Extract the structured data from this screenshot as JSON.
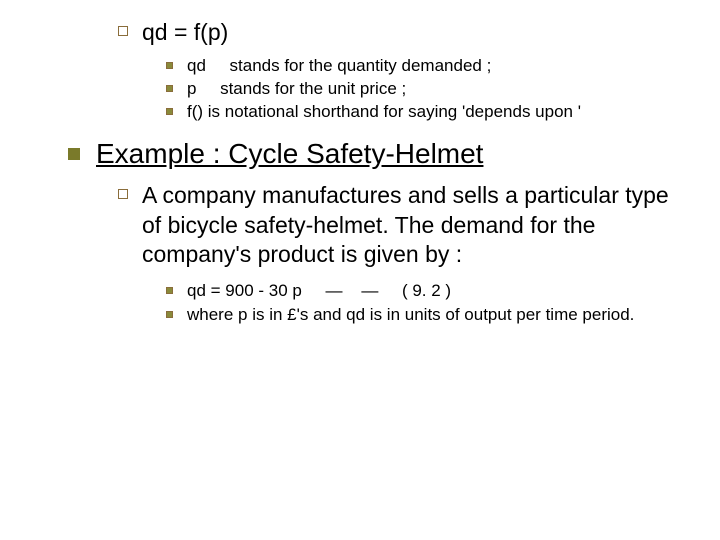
{
  "eq_block": {
    "equation": "qd = f(p)",
    "defs": [
      "qd     stands for the quantity demanded ;",
      "p     stands for the unit price ;",
      "f() is notational shorthand for saying 'depends upon '"
    ]
  },
  "heading": "Example : Cycle Safety-Helmet",
  "body": {
    "intro": "A company manufactures and sells a particular type of bicycle safety-helmet. The demand for the company's product is given by :",
    "items": [
      "qd = 900 - 30 p     —    —     ( 9. 2 )",
      "where p is in £'s and qd is in units of output per time period."
    ]
  },
  "colors": {
    "bullet_hollow_border": "#8a6d3b",
    "bullet_solid_small": "#8a8a3a",
    "bullet_solid_large": "#7a7a2a",
    "bg": "#ffffff",
    "text": "#000000"
  },
  "fonts": {
    "lvl0_size": 28,
    "lvl1_size": 23,
    "lvl2_size": 17
  }
}
